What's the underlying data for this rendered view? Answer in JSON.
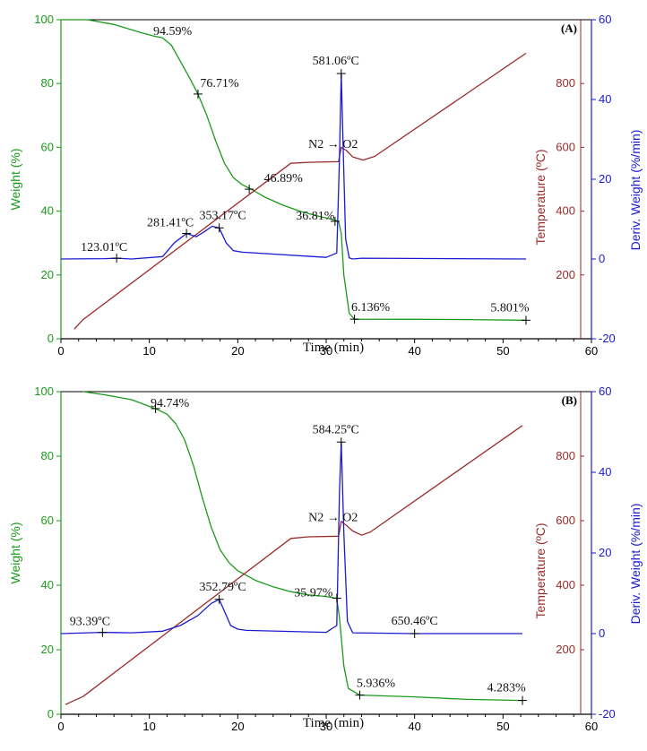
{
  "colors": {
    "weight": "#1a9a1a",
    "temperature": "#9a2a2a",
    "deriv": "#1a1ad2",
    "axis": "#000000"
  },
  "chart_data": [
    {
      "type": "line",
      "panel_label": "(A)",
      "xlabel": "Time (min)",
      "ylabel_left": "Weight (%)",
      "ylabel_right1": "Temperature (ºC)",
      "ylabel_right2": "Deriv. Weight (%/min)",
      "xlim": [
        0,
        60
      ],
      "ylim_left": [
        0,
        100
      ],
      "ylim_temp": [
        -20,
        60
      ],
      "ylim_deriv": [
        -20,
        60
      ],
      "xticks": [
        0,
        10,
        20,
        30,
        40,
        50,
        60
      ],
      "yticks_left": [
        0,
        20,
        40,
        60,
        80,
        100
      ],
      "temp_ticks": [
        200,
        400,
        600,
        800
      ],
      "deriv_ticks": [
        -20,
        0,
        20,
        40,
        60
      ],
      "gas_label": "N2 → O2",
      "series": [
        {
          "name": "Weight",
          "axis": "left",
          "x": [
            0,
            3,
            6,
            9,
            10.5,
            11.5,
            12.5,
            13.5,
            14.5,
            15.5,
            16.5,
            17.5,
            18.5,
            19.5,
            20.5,
            21.5,
            23,
            25,
            27,
            29,
            31,
            31.4,
            31.7,
            32,
            32.6,
            33.2,
            40,
            46,
            52.6
          ],
          "y": [
            100,
            100,
            98.5,
            96,
            94.9,
            94.3,
            92,
            87,
            82,
            76.7,
            70,
            62,
            55,
            50.5,
            48.3,
            46.9,
            44.5,
            42,
            40,
            38.5,
            37.2,
            36.81,
            33,
            20,
            8,
            6.136,
            6.1,
            6,
            5.801
          ]
        },
        {
          "name": "Temperature",
          "axis": "temp",
          "x": [
            1.5,
            2.5,
            26,
            28,
            31.4,
            31.7,
            32.3,
            33,
            34.2,
            35.5,
            52.6
          ],
          "y": [
            30,
            60,
            550,
            553,
            555,
            600,
            590,
            570,
            560,
            572,
            895
          ]
        },
        {
          "name": "Deriv. Weight",
          "axis": "deriv",
          "x": [
            0,
            5,
            6.3,
            8,
            11.5,
            12.8,
            14.2,
            15.3,
            16.2,
            17.1,
            17.9,
            18.7,
            19.5,
            20.5,
            30,
            31.2,
            31.5,
            31.7,
            31.9,
            32.2,
            32.6,
            33,
            34,
            52.6
          ],
          "y": [
            0,
            0.1,
            0.2,
            0,
            0.6,
            4,
            6.4,
            5.6,
            6.8,
            8.2,
            7.8,
            4,
            2.1,
            1.7,
            0.4,
            1.5,
            25,
            46.5,
            30,
            5,
            0.3,
            0,
            0.2,
            0
          ]
        }
      ],
      "annotations": [
        {
          "text": "94.59%",
          "x": 11,
          "y": 94.6,
          "axis": "left",
          "marker": false
        },
        {
          "text": "76.71%",
          "x": 15.5,
          "y": 76.71,
          "axis": "left",
          "marker": true
        },
        {
          "text": "46.89%",
          "x": 21.3,
          "y": 46.89,
          "axis": "left",
          "marker": true
        },
        {
          "text": "36.81%",
          "x": 31.0,
          "y": 36.81,
          "axis": "left",
          "marker": true
        },
        {
          "text": "6.136%",
          "x": 33.2,
          "y": 6.136,
          "axis": "left",
          "marker": true
        },
        {
          "text": "5.801%",
          "x": 52.6,
          "y": 5.801,
          "axis": "left",
          "marker": true
        },
        {
          "text": "581.06ºC",
          "x": 31.7,
          "y": 46.5,
          "axis": "deriv",
          "marker": true
        },
        {
          "text": "123.01ºC",
          "x": 6.3,
          "y": 0.2,
          "axis": "deriv",
          "marker": true
        },
        {
          "text": "281.41ºC",
          "x": 14.2,
          "y": 6.4,
          "axis": "deriv",
          "marker": true
        },
        {
          "text": "353.17ºC",
          "x": 17.9,
          "y": 7.8,
          "axis": "deriv",
          "marker": true
        }
      ]
    },
    {
      "type": "line",
      "panel_label": "(B)",
      "xlabel": "Time (min)",
      "ylabel_left": "Weight (%)",
      "ylabel_right1": "Temperature (ºC)",
      "ylabel_right2": "Deriv. Weight (%/min)",
      "xlim": [
        0,
        60
      ],
      "ylim_left": [
        0,
        100
      ],
      "ylim_temp": [
        -20,
        60
      ],
      "ylim_deriv": [
        -20,
        60
      ],
      "xticks": [
        0,
        10,
        20,
        30,
        40,
        50,
        60
      ],
      "yticks_left": [
        0,
        20,
        40,
        60,
        80,
        100
      ],
      "temp_ticks": [
        200,
        400,
        600,
        800
      ],
      "deriv_ticks": [
        -20,
        0,
        20,
        40,
        60
      ],
      "gas_label": "N2 → O2",
      "series": [
        {
          "name": "Weight",
          "axis": "left",
          "x": [
            2.5,
            5,
            8,
            10.7,
            12,
            13,
            14,
            15,
            16,
            17,
            18,
            19,
            20,
            22,
            24,
            26,
            28,
            30,
            31.2,
            31.5,
            32,
            32.5,
            33.8,
            40,
            46,
            52.2
          ],
          "y": [
            100,
            99,
            97.5,
            94.7,
            93,
            90,
            85,
            77,
            67,
            58,
            51,
            47,
            44.5,
            41.5,
            39.5,
            38,
            37,
            36.5,
            35.97,
            30,
            15,
            8,
            5.936,
            5.4,
            4.6,
            4.283
          ]
        },
        {
          "name": "Temperature",
          "axis": "temp",
          "x": [
            0.5,
            2.5,
            26,
            28,
            31.4,
            31.7,
            32.3,
            33,
            34,
            35,
            52.2
          ],
          "y": [
            30,
            55,
            545,
            550,
            552,
            598,
            585,
            568,
            555,
            565,
            895
          ]
        },
        {
          "name": "Deriv. Weight",
          "axis": "deriv",
          "x": [
            0,
            4.7,
            8,
            11.5,
            13.5,
            15.5,
            17,
            17.9,
            18.6,
            19.2,
            20,
            21,
            30,
            31.2,
            31.5,
            31.7,
            32,
            32.4,
            33,
            40,
            52.2
          ],
          "y": [
            0,
            0.3,
            0.2,
            0.6,
            2,
            4.5,
            7.5,
            8.5,
            5,
            2,
            1.1,
            0.8,
            0.3,
            2,
            35,
            47.5,
            25,
            3,
            0.2,
            0,
            0
          ]
        }
      ],
      "annotations": [
        {
          "text": "94.74%",
          "x": 10.7,
          "y": 94.74,
          "axis": "left",
          "marker": true
        },
        {
          "text": "35.97%",
          "x": 31.2,
          "y": 35.97,
          "axis": "left",
          "marker": true
        },
        {
          "text": "5.936%",
          "x": 33.8,
          "y": 5.936,
          "axis": "left",
          "marker": true
        },
        {
          "text": "4.283%",
          "x": 52.2,
          "y": 4.283,
          "axis": "left",
          "marker": true
        },
        {
          "text": "584.25ºC",
          "x": 31.7,
          "y": 47.5,
          "axis": "deriv",
          "marker": true
        },
        {
          "text": "93.39ºC",
          "x": 4.7,
          "y": 0.3,
          "axis": "deriv",
          "marker": true
        },
        {
          "text": "352.79ºC",
          "x": 17.9,
          "y": 8.5,
          "axis": "deriv",
          "marker": true
        },
        {
          "text": "650.46ºC",
          "x": 40,
          "y": 0,
          "axis": "deriv",
          "marker": true
        }
      ]
    }
  ]
}
